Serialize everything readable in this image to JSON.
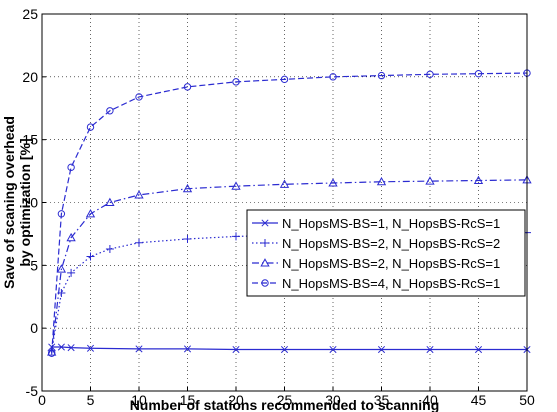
{
  "chart_data": {
    "type": "line",
    "title": "",
    "xlabel": "Number of stations recommended to scanning",
    "ylabel": [
      "Save of scaning overhead",
      "by optimization [%]"
    ],
    "xlim": [
      0,
      50
    ],
    "ylim": [
      -5,
      25
    ],
    "xticks": [
      0,
      5,
      10,
      15,
      20,
      25,
      30,
      35,
      40,
      45,
      50
    ],
    "yticks": [
      -5,
      0,
      5,
      10,
      15,
      20,
      25
    ],
    "grid": true,
    "legend_position": "right",
    "series": [
      {
        "name": "N_HopsMS-BS=1, N_HopsBS-RcS=1",
        "color": "#2b2bd1",
        "line_style": "solid",
        "marker": "x",
        "x": [
          1,
          2,
          3,
          5,
          10,
          15,
          20,
          25,
          30,
          35,
          40,
          45,
          50
        ],
        "y": [
          -1.5,
          -1.5,
          -1.55,
          -1.6,
          -1.65,
          -1.65,
          -1.7,
          -1.7,
          -1.7,
          -1.7,
          -1.7,
          -1.7,
          -1.7
        ]
      },
      {
        "name": "N_HopsMS-BS=2, N_HopsBS-RcS=2",
        "color": "#2b2bd1",
        "line_style": "dotted",
        "marker": "+",
        "x": [
          1,
          2,
          3,
          5,
          7,
          10,
          15,
          20,
          25,
          30,
          35,
          40,
          45,
          50
        ],
        "y": [
          -1.8,
          2.8,
          4.4,
          5.7,
          6.3,
          6.8,
          7.1,
          7.3,
          7.4,
          7.45,
          7.5,
          7.55,
          7.6,
          7.6
        ]
      },
      {
        "name": "N_HopsMS-BS=2, N_HopsBS-RcS=1",
        "color": "#2b2bd1",
        "line_style": "dashdot",
        "marker": "triangle",
        "x": [
          1,
          2,
          3,
          5,
          7,
          10,
          15,
          20,
          25,
          30,
          35,
          40,
          45,
          50
        ],
        "y": [
          -1.9,
          4.7,
          7.2,
          9.1,
          10.0,
          10.6,
          11.1,
          11.3,
          11.45,
          11.55,
          11.65,
          11.7,
          11.75,
          11.8
        ]
      },
      {
        "name": "N_HopsMS-BS=4, N_HopsBS-RcS=1",
        "color": "#2b2bd1",
        "line_style": "dashed",
        "marker": "circle",
        "x": [
          1,
          2,
          3,
          5,
          7,
          10,
          15,
          20,
          25,
          30,
          35,
          40,
          45,
          50
        ],
        "y": [
          -2.0,
          9.1,
          12.8,
          16.0,
          17.3,
          18.4,
          19.2,
          19.6,
          19.8,
          20.0,
          20.1,
          20.2,
          20.25,
          20.3
        ]
      }
    ]
  }
}
